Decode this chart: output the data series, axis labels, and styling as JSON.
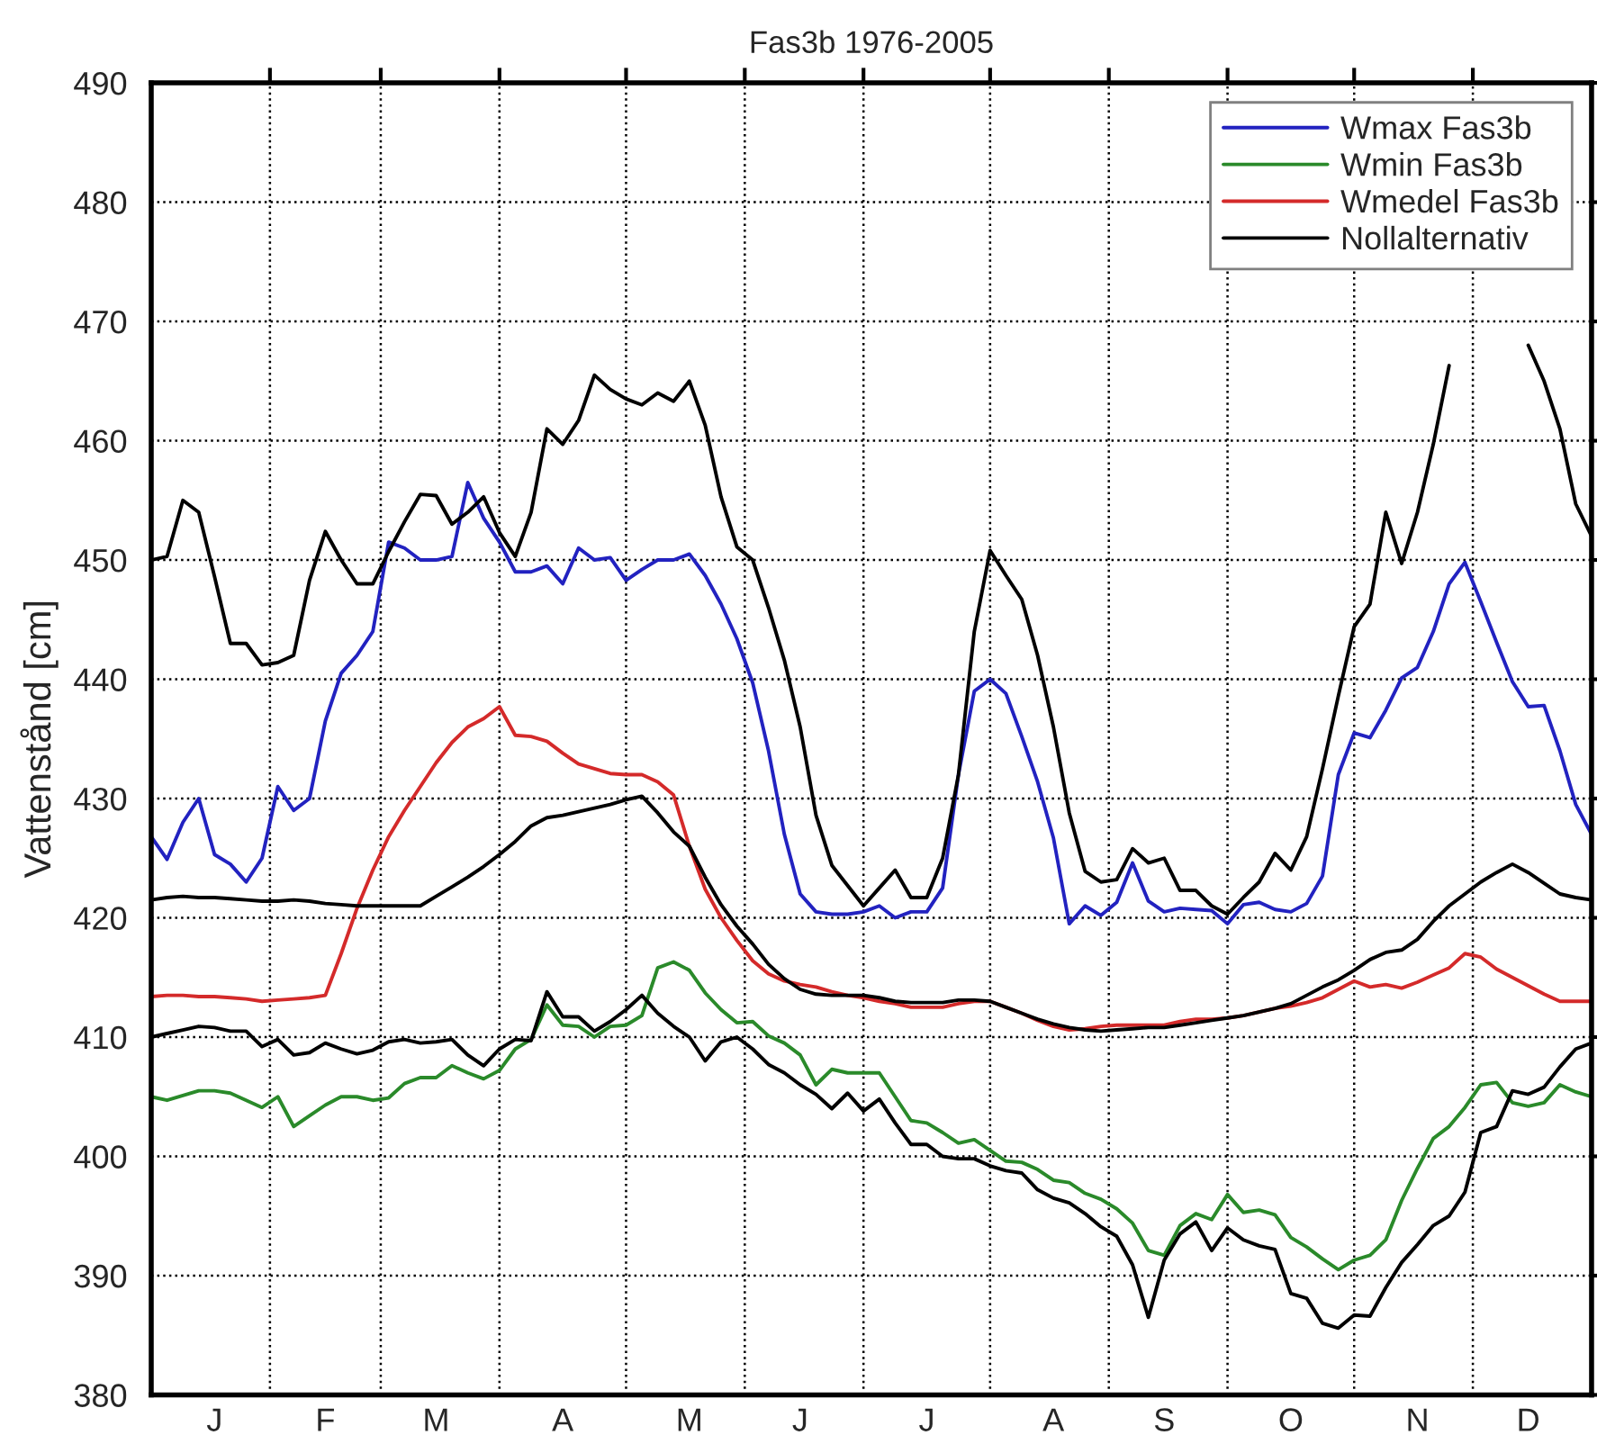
{
  "chart_data": {
    "type": "line",
    "title": "Fas3b 1976-2005",
    "ylabel": "Vattenstånd [cm]",
    "categories": [
      null,
      null,
      null,
      null,
      "J",
      null,
      null,
      null,
      null,
      null,
      null,
      "F",
      null,
      null,
      null,
      null,
      null,
      null,
      "M",
      null,
      null,
      null,
      null,
      null,
      null,
      null,
      "A",
      null,
      null,
      null,
      null,
      null,
      null,
      null,
      "M",
      null,
      null,
      null,
      null,
      null,
      null,
      "J",
      null,
      null,
      null,
      null,
      null,
      null,
      null,
      "J",
      null,
      null,
      null,
      null,
      null,
      null,
      null,
      "A",
      null,
      null,
      null,
      null,
      null,
      null,
      "S",
      null,
      null,
      null,
      null,
      null,
      null,
      null,
      "O",
      null,
      null,
      null,
      null,
      null,
      null,
      null,
      "N",
      null,
      null,
      null,
      null,
      null,
      null,
      "D",
      null,
      null,
      null,
      null
    ],
    "ylim": [
      380,
      490
    ],
    "yticks": [
      380,
      390,
      400,
      410,
      420,
      430,
      440,
      450,
      460,
      470,
      480,
      490
    ],
    "grid": true,
    "legend": "top right",
    "series": [
      {
        "name": "Wmax Fas3b",
        "color": "#2222c0",
        "values": [
          426.8,
          424.9,
          428,
          430,
          425.3,
          424.5,
          423,
          425,
          431,
          429,
          430,
          436.5,
          440.5,
          442,
          444,
          451.5,
          451,
          450,
          450,
          450.3,
          456.5,
          453.5,
          451.5,
          449,
          449,
          449.5,
          448,
          451,
          450,
          450.2,
          448.3,
          449.2,
          450,
          450,
          450.5,
          448.7,
          446.3,
          443.4,
          439.7,
          434,
          427,
          422,
          420.5,
          420.3,
          420.3,
          420.5,
          421,
          420,
          420.5,
          420.5,
          422.5,
          432,
          439,
          440,
          438.8,
          435.2,
          431.4,
          426.7,
          419.5,
          421,
          420.2,
          421.3,
          424.6,
          421.4,
          420.5,
          420.8,
          420.7,
          420.6,
          419.5,
          421.1,
          421.3,
          420.7,
          420.5,
          421.2,
          423.5,
          432,
          435.5,
          435.1,
          437.4,
          440.1,
          441,
          444,
          448,
          449.8,
          446.5,
          443.1,
          439.8,
          437.7,
          437.8,
          434,
          429.5,
          427
        ]
      },
      {
        "name": "Wmin Fas3b",
        "color": "#2a8a2a",
        "values": [
          405,
          404.7,
          405.1,
          405.5,
          405.5,
          405.3,
          404.7,
          404.1,
          405,
          402.5,
          403.4,
          404.3,
          405,
          405,
          404.7,
          404.9,
          406.1,
          406.6,
          406.6,
          407.6,
          407,
          406.5,
          407.2,
          409,
          409.8,
          412.7,
          411,
          410.9,
          410,
          410.9,
          411,
          411.8,
          415.8,
          416.3,
          415.6,
          413.7,
          412.3,
          411.2,
          411.3,
          410.1,
          409.5,
          408.5,
          406,
          407.3,
          407,
          407,
          407,
          405,
          403,
          402.8,
          402,
          401.1,
          401.4,
          400.5,
          399.6,
          399.5,
          398.9,
          398,
          397.8,
          396.9,
          396.4,
          395.6,
          394.4,
          392.1,
          391.7,
          394.2,
          395.2,
          394.7,
          396.8,
          395.3,
          395.5,
          395.1,
          393.2,
          392.4,
          391.4,
          390.5,
          391.3,
          391.7,
          393,
          396.3,
          399,
          401.5,
          402.5,
          404.1,
          406,
          406.2,
          404.5,
          404.2,
          404.5,
          406,
          405.4,
          405
        ]
      },
      {
        "name": "Wmedel Fas3b",
        "color": "#d42a2a",
        "values": [
          413.4,
          413.5,
          413.5,
          413.4,
          413.4,
          413.3,
          413.2,
          413,
          413.1,
          413.2,
          413.3,
          413.5,
          417,
          420.8,
          424,
          426.8,
          429,
          431,
          433,
          434.7,
          436,
          436.7,
          437.7,
          435.3,
          435.2,
          434.8,
          433.8,
          432.9,
          432.5,
          432.1,
          432,
          432,
          431.4,
          430.3,
          426,
          422.4,
          420,
          418.1,
          416.4,
          415.3,
          414.7,
          414.4,
          414.2,
          413.8,
          413.5,
          413.3,
          413,
          412.8,
          412.5,
          412.5,
          412.5,
          412.8,
          413,
          413,
          412.5,
          412,
          411.4,
          410.9,
          410.6,
          410.7,
          410.9,
          411,
          411,
          411,
          411,
          411.3,
          411.5,
          411.5,
          411.6,
          411.8,
          412.1,
          412.4,
          412.6,
          412.9,
          413.3,
          414,
          414.7,
          414.2,
          414.4,
          414.1,
          414.6,
          415.2,
          415.8,
          417,
          416.7,
          415.7,
          415,
          414.3,
          413.6,
          413,
          413,
          413
        ]
      },
      {
        "name": "Nollalternativ",
        "color": "#000000",
        "values": [
          450,
          450.3,
          455,
          454,
          448.6,
          443,
          443,
          441.2,
          441.4,
          442,
          448.3,
          452.4,
          450,
          448,
          448,
          450.7,
          453.2,
          455.5,
          455.4,
          453,
          454,
          455.3,
          452.3,
          450.3,
          454,
          461,
          459.7,
          461.7,
          465.5,
          464.3,
          463.5,
          463,
          464,
          463.3,
          465,
          461.3,
          455.3,
          451.1,
          450,
          446,
          441.6,
          436,
          428.6,
          424.4,
          422.7,
          421,
          422.5,
          424,
          421.7,
          421.7,
          425,
          432,
          444,
          450.8,
          448.7,
          446.7,
          442,
          436,
          428.8,
          423.9,
          423,
          423.2,
          425.8,
          424.6,
          425,
          422.3,
          422.3,
          421,
          420.3,
          421.7,
          423,
          425.4,
          424,
          426.8,
          432.5,
          438.6,
          444.4,
          446.3,
          454,
          449.7,
          454,
          459.7,
          466.3,
          null,
          null,
          null,
          null,
          468,
          465,
          461,
          454.7,
          452
        ]
      },
      {
        "color": "#000000",
        "values": [
          421.5,
          421.7,
          421.8,
          421.7,
          421.7,
          421.6,
          421.5,
          421.4,
          421.4,
          421.5,
          421.4,
          421.2,
          421.1,
          421,
          421,
          421,
          421,
          421,
          421.8,
          422.6,
          423.4,
          424.3,
          425.3,
          426.4,
          427.7,
          428.4,
          428.6,
          428.9,
          429.2,
          429.5,
          429.9,
          430.2,
          428.8,
          427.2,
          426,
          423.4,
          421.1,
          419.3,
          417.8,
          416.1,
          414.9,
          414,
          413.6,
          413.5,
          413.5,
          413.5,
          413.3,
          413,
          412.9,
          412.9,
          412.9,
          413.1,
          413.1,
          413,
          412.5,
          412,
          411.5,
          411.1,
          410.8,
          410.6,
          410.5,
          410.6,
          410.7,
          410.8,
          410.8,
          411,
          411.2,
          411.4,
          411.6,
          411.8,
          412.1,
          412.4,
          412.8,
          413.5,
          414.2,
          414.8,
          415.6,
          416.5,
          417.1,
          417.3,
          418.2,
          419.7,
          421,
          422,
          423,
          423.8,
          424.5,
          423.8,
          422.9,
          422,
          421.7,
          421.5
        ]
      },
      {
        "color": "#000000",
        "values": [
          410,
          410.3,
          410.6,
          410.9,
          410.8,
          410.5,
          410.5,
          409.2,
          409.8,
          408.5,
          408.7,
          409.5,
          409,
          408.6,
          408.9,
          409.6,
          409.8,
          409.5,
          409.6,
          409.8,
          408.5,
          407.6,
          409,
          409.8,
          409.7,
          413.8,
          411.7,
          411.7,
          410.5,
          411.3,
          412.3,
          413.5,
          412,
          410.9,
          410,
          408,
          409.6,
          410,
          409,
          407.7,
          407,
          406,
          405.2,
          404,
          405.3,
          403.8,
          404.8,
          402.8,
          401,
          401,
          400,
          399.8,
          399.8,
          399.2,
          398.8,
          398.6,
          397.2,
          396.5,
          396.1,
          395.2,
          394.1,
          393.3,
          390.9,
          386.5,
          391.3,
          393.5,
          394.5,
          392.1,
          394,
          393,
          392.5,
          392.2,
          388.5,
          388.1,
          386,
          385.6,
          386.7,
          386.6,
          389,
          391.1,
          392.6,
          394.2,
          395,
          397,
          402,
          402.5,
          405.5,
          405.2,
          405.8,
          407.5,
          409,
          409.5
        ]
      }
    ]
  }
}
